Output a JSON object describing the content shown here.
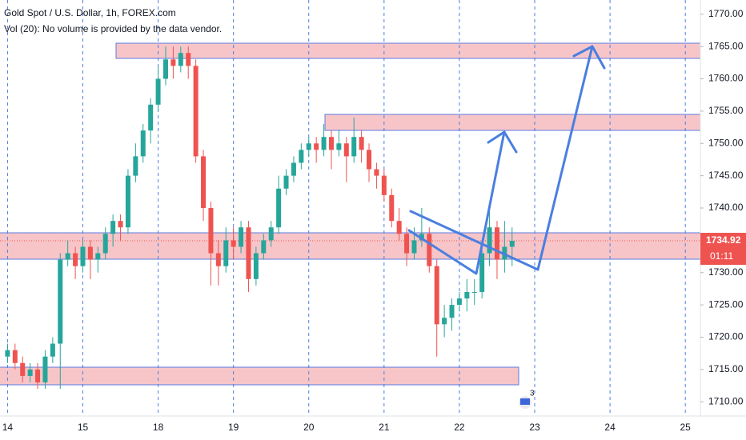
{
  "chart_data": {
    "type": "candlestick",
    "title": "Gold Spot / U.S. Dollar, 1h, FOREX.com",
    "subtitle": "Vol (20): No volume is provided by the data vendor.",
    "open": [
      1717,
      1718,
      1716,
      1714,
      1715,
      1713,
      1717,
      1719,
      1732,
      1733,
      1731,
      1734,
      1732,
      1733,
      1736,
      1738,
      1737,
      1745,
      1748,
      1752,
      1756,
      1760,
      1763,
      1762,
      1764,
      1762,
      1748,
      1740,
      1733,
      1731,
      1735,
      1734,
      1737,
      1729,
      1733,
      1735,
      1737,
      1743,
      1745,
      1747,
      1749,
      1750,
      1749,
      1751,
      1749,
      1750,
      1748,
      1751,
      1749,
      1746,
      1745,
      1742,
      1738,
      1736,
      1733,
      1735,
      1736,
      1731,
      1722,
      1723,
      1725,
      1726,
      1727,
      1727,
      1733,
      1737,
      1732,
      1734
    ],
    "high": [
      1719,
      1719,
      1717,
      1716,
      1716,
      1718,
      1720,
      1733,
      1735,
      1734,
      1735,
      1735,
      1734,
      1737,
      1739,
      1739,
      1746,
      1750,
      1753,
      1757,
      1762,
      1765,
      1765,
      1765,
      1765,
      1763,
      1749,
      1741,
      1735,
      1737,
      1737,
      1738,
      1738,
      1734,
      1736,
      1738,
      1745,
      1746,
      1748,
      1750,
      1751,
      1751,
      1753,
      1752,
      1752,
      1751,
      1754,
      1752,
      1750,
      1747,
      1746,
      1743,
      1740,
      1737,
      1737,
      1740,
      1737,
      1732,
      1725,
      1726,
      1727,
      1729,
      1729,
      1734,
      1740,
      1738,
      1738,
      1737
    ],
    "low": [
      1716,
      1715,
      1713,
      1713,
      1712,
      1712,
      1716,
      1712,
      1731,
      1729,
      1730,
      1729,
      1730,
      1732,
      1734,
      1735,
      1736,
      1744,
      1747,
      1750,
      1755,
      1759,
      1760,
      1761,
      1760,
      1747,
      1738,
      1728,
      1728,
      1730,
      1732,
      1733,
      1727,
      1728,
      1732,
      1734,
      1736,
      1742,
      1744,
      1746,
      1748,
      1747,
      1748,
      1746,
      1748,
      1744,
      1747,
      1747,
      1744,
      1743,
      1741,
      1737,
      1735,
      1731,
      1732,
      1734,
      1730,
      1717,
      1720,
      1721,
      1724,
      1724,
      1725,
      1726,
      1731,
      1729,
      1730,
      1731
    ],
    "close": [
      1718,
      1716,
      1714,
      1715,
      1713,
      1717,
      1719,
      1732,
      1733,
      1731,
      1734,
      1732,
      1733,
      1736,
      1738,
      1737,
      1745,
      1748,
      1752,
      1756,
      1760,
      1763,
      1762,
      1764,
      1762,
      1748,
      1740,
      1733,
      1731,
      1735,
      1734,
      1737,
      1729,
      1733,
      1735,
      1737,
      1743,
      1745,
      1747,
      1749,
      1750,
      1749,
      1751,
      1749,
      1750,
      1748,
      1751,
      1749,
      1746,
      1745,
      1742,
      1738,
      1736,
      1733,
      1735,
      1736,
      1731,
      1722,
      1723,
      1725,
      1726,
      1727,
      1727,
      1733,
      1737,
      1732,
      1734,
      1734.92
    ],
    "up_color": "#26a69a",
    "down_color": "#ef5350",
    "xlim": [
      -1,
      92
    ],
    "xticks": [
      {
        "value": 0,
        "label": "14"
      },
      {
        "value": 10,
        "label": "15"
      },
      {
        "value": 20,
        "label": "18"
      },
      {
        "value": 30,
        "label": "19"
      },
      {
        "value": 40,
        "label": "20"
      },
      {
        "value": 50,
        "label": "21"
      },
      {
        "value": 60,
        "label": "22"
      },
      {
        "value": 70,
        "label": "23"
      },
      {
        "value": 80,
        "label": "24"
      },
      {
        "value": 90,
        "label": "25"
      }
    ],
    "ylim": [
      1707.8,
      1772.2
    ],
    "yticks": [
      {
        "value": 1710,
        "label": "1710.00"
      },
      {
        "value": 1715,
        "label": "1715.00"
      },
      {
        "value": 1720,
        "label": "1720.00"
      },
      {
        "value": 1725,
        "label": "1725.00"
      },
      {
        "value": 1730,
        "label": "1730.00"
      },
      {
        "value": 1735,
        "label": "1735.00"
      },
      {
        "value": 1740,
        "label": "1740.00"
      },
      {
        "value": 1745,
        "label": "1745.00"
      },
      {
        "value": 1750,
        "label": "1750.00"
      },
      {
        "value": 1755,
        "label": "1755.00"
      },
      {
        "value": 1760,
        "label": "1760.00"
      },
      {
        "value": 1765,
        "label": "1765.00"
      },
      {
        "value": 1770,
        "label": "1770.00"
      }
    ],
    "last_price": 1734.92,
    "countdown": "01:11",
    "events_badge": "3"
  }
}
